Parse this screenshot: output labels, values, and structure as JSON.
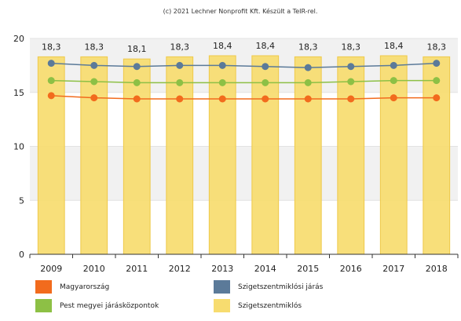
{
  "credit": "(c) 2021 Lechner Nonprofit Kft. Készült a TeIR-rel.",
  "chart_data": {
    "type": "bar",
    "categories": [
      "2009",
      "2010",
      "2011",
      "2012",
      "2013",
      "2014",
      "2015",
      "2016",
      "2017",
      "2018"
    ],
    "ylim": [
      0,
      20
    ],
    "yticks": [
      0,
      5,
      10,
      15,
      20
    ],
    "grid": true,
    "legend_position": "bottom",
    "series": [
      {
        "name": "Szigetszentmiklós",
        "kind": "bar",
        "color": "#f7dc6f",
        "values": [
          18.3,
          18.3,
          18.1,
          18.3,
          18.4,
          18.4,
          18.3,
          18.3,
          18.4,
          18.3
        ],
        "labels": [
          "18,3",
          "18,3",
          "18,1",
          "18,3",
          "18,4",
          "18,4",
          "18,3",
          "18,3",
          "18,4",
          "18,3"
        ]
      },
      {
        "name": "Szigetszentmiklósi járás",
        "kind": "line",
        "color": "#5b7a99",
        "values": [
          17.7,
          17.5,
          17.4,
          17.5,
          17.5,
          17.4,
          17.3,
          17.4,
          17.5,
          17.7
        ]
      },
      {
        "name": "Pest megyei járásközpontok",
        "kind": "line",
        "color": "#8dc045",
        "values": [
          16.1,
          16.0,
          15.9,
          15.9,
          15.9,
          15.9,
          15.9,
          16.0,
          16.1,
          16.1
        ]
      },
      {
        "name": "Magyarország",
        "kind": "line",
        "color": "#f26b1d",
        "values": [
          14.7,
          14.5,
          14.4,
          14.4,
          14.4,
          14.4,
          14.4,
          14.4,
          14.5,
          14.5
        ]
      }
    ],
    "legend": [
      {
        "name": "Magyarország",
        "color": "#f26b1d"
      },
      {
        "name": "Szigetszentmiklósi járás",
        "color": "#5b7a99"
      },
      {
        "name": "Pest megyei járásközpontok",
        "color": "#8dc045"
      },
      {
        "name": "Szigetszentmiklós",
        "color": "#f7dc6f"
      }
    ]
  }
}
